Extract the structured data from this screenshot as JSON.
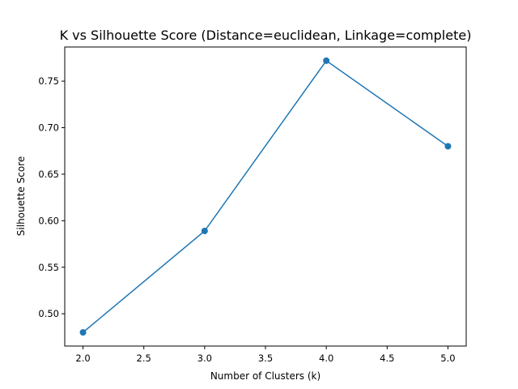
{
  "chart_data": {
    "type": "line",
    "title": "K vs Silhouette Score (Distance=euclidean, Linkage=complete)",
    "xlabel": "Number of Clusters (k)",
    "ylabel": "Silhouette Score",
    "x": [
      2,
      3,
      4,
      5
    ],
    "series": [
      {
        "values": [
          0.48,
          0.589,
          0.772,
          0.68
        ],
        "color": "#1f77b4",
        "marker": "circle"
      }
    ],
    "xlim": [
      1.85,
      5.15
    ],
    "ylim": [
      0.4653,
      0.7867
    ],
    "xticks": [
      2.0,
      2.5,
      3.0,
      3.5,
      4.0,
      4.5,
      5.0
    ],
    "xtick_labels": [
      "2.0",
      "2.5",
      "3.0",
      "3.5",
      "4.0",
      "4.5",
      "5.0"
    ],
    "yticks": [
      0.5,
      0.55,
      0.6,
      0.65,
      0.7,
      0.75
    ],
    "ytick_labels": [
      "0.50",
      "0.55",
      "0.60",
      "0.65",
      "0.70",
      "0.75"
    ],
    "grid": false,
    "legend": "none"
  }
}
